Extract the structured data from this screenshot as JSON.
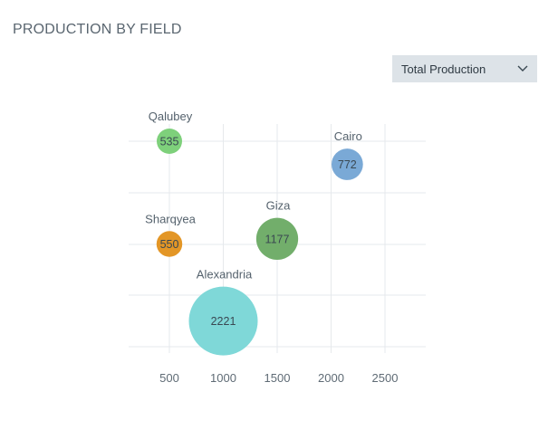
{
  "title": "PRODUCTION BY FIELD",
  "dropdown": {
    "selected": "Total Production",
    "icon": "chevron-down-icon"
  },
  "chart_data": {
    "type": "scatter",
    "subtype": "bubble",
    "title": "PRODUCTION BY FIELD",
    "xlabel": "",
    "ylabel": "",
    "xlim": [
      150,
      2850
    ],
    "ylim": [
      0,
      4.4
    ],
    "xticks": [
      500,
      1000,
      1500,
      2000,
      2500
    ],
    "grid": true,
    "points": [
      {
        "name": "Qalubey",
        "x": 500,
        "y": 4.0,
        "value": 535,
        "color": "#7ed07b"
      },
      {
        "name": "Cairo",
        "x": 2150,
        "y": 3.55,
        "value": 772,
        "color": "#7aa9d6"
      },
      {
        "name": "Sharqyea",
        "x": 500,
        "y": 2.0,
        "value": 550,
        "color": "#e39626"
      },
      {
        "name": "Giza",
        "x": 1500,
        "y": 2.1,
        "value": 1177,
        "color": "#72ae6b"
      },
      {
        "name": "Alexandria",
        "x": 1000,
        "y": 0.5,
        "value": 2221,
        "color": "#7fd8d8"
      }
    ]
  }
}
